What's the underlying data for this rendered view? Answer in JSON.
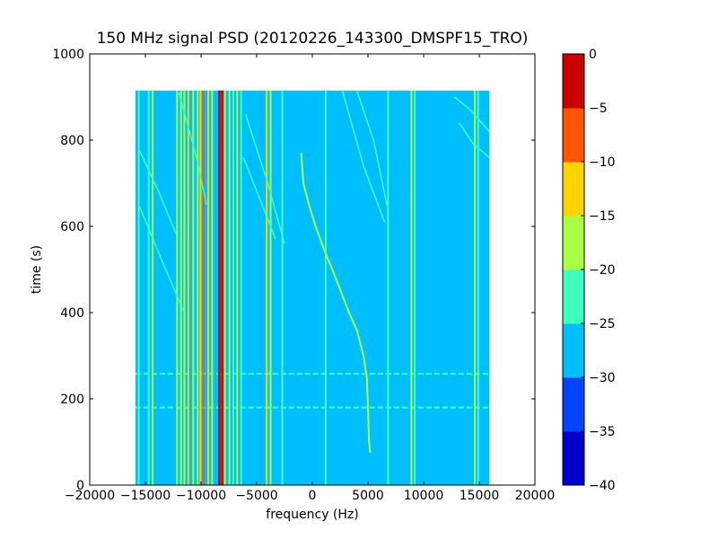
{
  "chart_data": {
    "type": "heatmap",
    "title": "150 MHz signal PSD (20120226_143300_DMSPF15_TRO)",
    "xlabel": "frequency (Hz)",
    "ylabel": "time (s)",
    "xlim": [
      -20000,
      20000
    ],
    "ylim": [
      0,
      1000
    ],
    "x_ticks": [
      "−20000",
      "−15000",
      "−10000",
      "−5000",
      "0",
      "5000",
      "10000",
      "15000",
      "20000"
    ],
    "x_tick_values": [
      -20000,
      -15000,
      -10000,
      -5000,
      0,
      5000,
      10000,
      15000,
      20000
    ],
    "y_ticks": [
      "0",
      "200",
      "400",
      "600",
      "800",
      "1000"
    ],
    "y_tick_values": [
      0,
      200,
      400,
      600,
      800,
      1000
    ],
    "data_extent": {
      "x": [
        -15900,
        15900
      ],
      "y": [
        0,
        915
      ]
    },
    "background_level": -27.5,
    "colorbar": {
      "levels": [
        -40,
        -35,
        -30,
        -25,
        -20,
        -15,
        -10,
        -5,
        0
      ],
      "tick_labels": [
        "−40",
        "−35",
        "−30",
        "−25",
        "−20",
        "−15",
        "−10",
        "−5",
        "0"
      ],
      "colors": [
        "#0000cd",
        "#0044ff",
        "#00bfff",
        "#3fffbf",
        "#aaff44",
        "#ffd400",
        "#ff5500",
        "#cc0000"
      ]
    },
    "vertical_features": [
      {
        "freq": -15600,
        "level": -22.5
      },
      {
        "freq": -14700,
        "level": -22.5
      },
      {
        "freq": -14350,
        "level": -17.5
      },
      {
        "freq": -12150,
        "level": -17.5
      },
      {
        "freq": -11800,
        "level": -17.5
      },
      {
        "freq": -11500,
        "level": -17.5
      },
      {
        "freq": -11150,
        "level": -12.5
      },
      {
        "freq": -10700,
        "level": -17.5
      },
      {
        "freq": -10300,
        "level": -17.5
      },
      {
        "freq": -10050,
        "level": -12.5
      },
      {
        "freq": -9800,
        "level": -7.5
      },
      {
        "freq": -9350,
        "level": -12.5
      },
      {
        "freq": -9000,
        "level": -17.5
      },
      {
        "freq": -8350,
        "level": -2.5
      },
      {
        "freq": -8100,
        "level": -2.5
      },
      {
        "freq": -7850,
        "level": -17.5
      },
      {
        "freq": -7450,
        "level": -17.5
      },
      {
        "freq": -7100,
        "level": -22.5
      },
      {
        "freq": -6750,
        "level": -17.5
      },
      {
        "freq": -6400,
        "level": -22.5
      },
      {
        "freq": -4100,
        "level": -12.5
      },
      {
        "freq": -3750,
        "level": -17.5
      },
      {
        "freq": -2700,
        "level": -22.5
      },
      {
        "freq": 1200,
        "level": -22.5
      },
      {
        "freq": 6800,
        "level": -22.5
      },
      {
        "freq": 8900,
        "level": -17.5
      },
      {
        "freq": 9200,
        "level": -22.5
      },
      {
        "freq": 14600,
        "level": -17.5
      },
      {
        "freq": 14900,
        "level": -22.5
      }
    ],
    "horizontal_features": [
      {
        "time": 180,
        "level": -22.5
      },
      {
        "time": 258,
        "level": -22.5
      }
    ],
    "sweep_trace": {
      "level": -17.5,
      "points": [
        [
          -1000,
          770
        ],
        [
          -800,
          700
        ],
        [
          -300,
          650
        ],
        [
          300,
          600
        ],
        [
          1000,
          550
        ],
        [
          1800,
          500
        ],
        [
          2700,
          440
        ],
        [
          3300,
          400
        ],
        [
          4000,
          360
        ],
        [
          4600,
          300
        ],
        [
          4900,
          250
        ],
        [
          5000,
          180
        ],
        [
          5100,
          100
        ],
        [
          5200,
          75
        ]
      ]
    },
    "diagonal_traces": [
      {
        "level": -22.5,
        "points": [
          [
            -15600,
            780
          ],
          [
            -13800,
            680
          ],
          [
            -12200,
            580
          ]
        ]
      },
      {
        "level": -22.5,
        "points": [
          [
            -15600,
            650
          ],
          [
            -13500,
            520
          ],
          [
            -11500,
            400
          ]
        ]
      },
      {
        "level": -22.5,
        "points": [
          [
            -12000,
            910
          ],
          [
            -10500,
            770
          ],
          [
            -9500,
            650
          ]
        ]
      },
      {
        "level": -22.5,
        "points": [
          [
            -6200,
            760
          ],
          [
            -4500,
            650
          ],
          [
            -3300,
            570
          ]
        ]
      },
      {
        "level": -22.5,
        "points": [
          [
            -6000,
            860
          ],
          [
            -4000,
            700
          ],
          [
            -2500,
            560
          ]
        ]
      },
      {
        "level": -22.5,
        "points": [
          [
            2700,
            915
          ],
          [
            4600,
            740
          ],
          [
            6500,
            610
          ]
        ]
      },
      {
        "level": -22.5,
        "points": [
          [
            4000,
            915
          ],
          [
            5500,
            800
          ],
          [
            6700,
            650
          ]
        ]
      },
      {
        "level": -22.5,
        "points": [
          [
            13200,
            840
          ],
          [
            14500,
            790
          ],
          [
            15900,
            760
          ]
        ]
      },
      {
        "level": -22.5,
        "points": [
          [
            12800,
            900
          ],
          [
            14200,
            870
          ],
          [
            15900,
            820
          ]
        ]
      }
    ]
  }
}
